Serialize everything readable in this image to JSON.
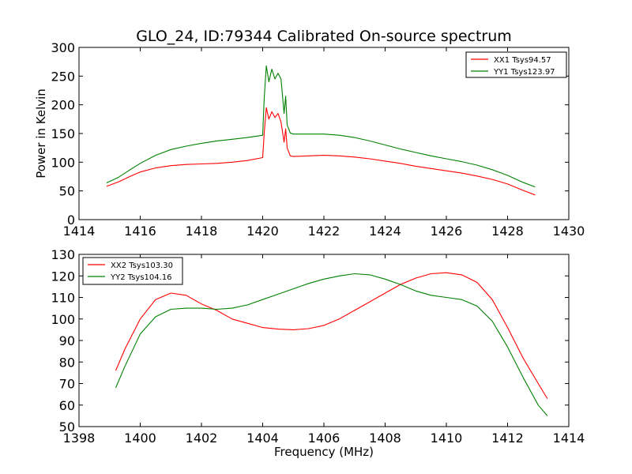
{
  "chart_data": [
    {
      "type": "line",
      "title": "GLO_24, ID:79344 Calibrated On-source spectrum",
      "xlabel": "",
      "ylabel": "Power in Kelvin",
      "xlim": [
        1414,
        1430
      ],
      "ylim": [
        0,
        300
      ],
      "x_ticks": [
        1414,
        1416,
        1418,
        1420,
        1422,
        1424,
        1426,
        1428,
        1430
      ],
      "y_ticks": [
        0,
        50,
        100,
        150,
        200,
        250,
        300
      ],
      "grid": false,
      "legend_position": "top-right",
      "series": [
        {
          "name": "XX1 Tsys94.57",
          "color": "#ff0000",
          "x": [
            1414.9,
            1415.3,
            1415.7,
            1416.0,
            1416.5,
            1417.0,
            1417.5,
            1418.0,
            1418.5,
            1419.0,
            1419.5,
            1420.0,
            1420.05,
            1420.12,
            1420.2,
            1420.3,
            1420.4,
            1420.5,
            1420.6,
            1420.7,
            1420.75,
            1420.8,
            1420.9,
            1421.0,
            1421.5,
            1422.0,
            1422.5,
            1423.0,
            1423.5,
            1424.0,
            1424.5,
            1425.0,
            1425.5,
            1426.0,
            1426.5,
            1427.0,
            1427.5,
            1428.0,
            1428.5,
            1428.9
          ],
          "y": [
            58,
            66,
            76,
            83,
            90,
            94,
            96,
            97,
            98,
            100,
            103,
            108,
            150,
            195,
            175,
            188,
            178,
            185,
            170,
            135,
            158,
            125,
            111,
            110,
            111,
            112,
            111,
            109,
            106,
            102,
            98,
            93,
            89,
            85,
            81,
            76,
            70,
            62,
            51,
            43
          ]
        },
        {
          "name": "YY1 Tsys123.97",
          "color": "#008000",
          "x": [
            1414.9,
            1415.3,
            1415.7,
            1416.0,
            1416.5,
            1417.0,
            1417.5,
            1418.0,
            1418.5,
            1419.0,
            1419.5,
            1420.0,
            1420.05,
            1420.12,
            1420.2,
            1420.3,
            1420.4,
            1420.5,
            1420.6,
            1420.7,
            1420.75,
            1420.8,
            1420.9,
            1421.0,
            1421.5,
            1422.0,
            1422.5,
            1423.0,
            1423.5,
            1424.0,
            1424.5,
            1425.0,
            1425.5,
            1426.0,
            1426.5,
            1427.0,
            1427.5,
            1428.0,
            1428.5,
            1428.9
          ],
          "y": [
            64,
            74,
            88,
            98,
            112,
            122,
            128,
            133,
            137,
            140,
            143,
            147,
            210,
            268,
            240,
            262,
            245,
            255,
            245,
            185,
            215,
            165,
            151,
            149,
            149,
            149,
            147,
            143,
            137,
            130,
            123,
            117,
            111,
            106,
            101,
            95,
            87,
            77,
            65,
            57
          ]
        }
      ]
    },
    {
      "type": "line",
      "title": "",
      "xlabel": "Frequency (MHz)",
      "ylabel": "",
      "xlim": [
        1398,
        1414
      ],
      "ylim": [
        50,
        130
      ],
      "x_ticks": [
        1398,
        1400,
        1402,
        1404,
        1406,
        1408,
        1410,
        1412,
        1414
      ],
      "y_ticks": [
        50,
        60,
        70,
        80,
        90,
        100,
        110,
        120,
        130
      ],
      "grid": false,
      "legend_position": "top-left",
      "series": [
        {
          "name": "XX2 Tsys103.30",
          "color": "#ff0000",
          "x": [
            1399.2,
            1399.5,
            1400.0,
            1400.5,
            1401.0,
            1401.5,
            1402.0,
            1402.5,
            1403.0,
            1403.5,
            1404.0,
            1404.5,
            1405.0,
            1405.5,
            1406.0,
            1406.5,
            1407.0,
            1407.5,
            1408.0,
            1408.5,
            1409.0,
            1409.5,
            1410.0,
            1410.5,
            1411.0,
            1411.5,
            1412.0,
            1412.5,
            1413.0,
            1413.3
          ],
          "y": [
            76,
            86,
            100,
            109,
            112,
            111,
            107,
            104,
            100,
            98,
            96,
            95.3,
            95,
            95.5,
            97,
            100,
            104,
            108,
            112,
            116,
            119,
            121,
            121.5,
            120.5,
            117,
            109,
            96,
            82,
            70,
            63
          ]
        },
        {
          "name": "YY2 Tsys104.16",
          "color": "#008000",
          "x": [
            1399.2,
            1399.5,
            1400.0,
            1400.5,
            1401.0,
            1401.5,
            1402.0,
            1402.5,
            1403.0,
            1403.5,
            1404.0,
            1404.5,
            1405.0,
            1405.5,
            1406.0,
            1406.5,
            1407.0,
            1407.5,
            1408.0,
            1408.5,
            1409.0,
            1409.5,
            1410.0,
            1410.5,
            1411.0,
            1411.5,
            1412.0,
            1412.5,
            1413.0,
            1413.3
          ],
          "y": [
            68,
            78,
            93,
            101,
            104.5,
            105,
            105,
            104.5,
            105,
            106.5,
            109,
            111.5,
            114,
            116.5,
            118.5,
            120,
            121,
            120.5,
            118.5,
            116,
            113,
            111,
            110,
            109,
            106,
            99,
            87,
            73,
            60,
            55
          ]
        }
      ]
    }
  ]
}
